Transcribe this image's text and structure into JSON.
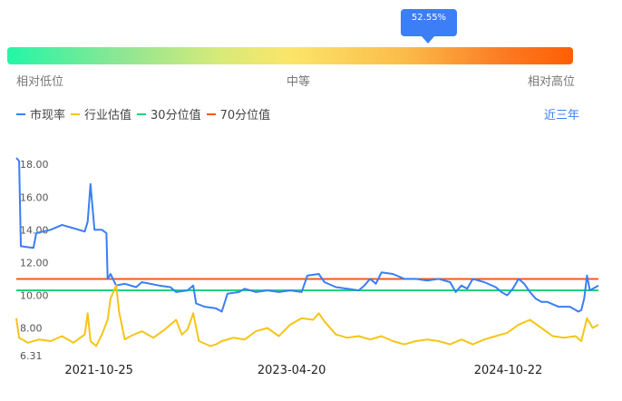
{
  "gauge": {
    "percentile": 0.5255,
    "percentile_label": "52.55%",
    "low_label": "相对低位",
    "mid_label": "中等",
    "high_label": "相对高位"
  },
  "legend": {
    "items": [
      {
        "label": "市现率",
        "color": "#3b7ef5"
      },
      {
        "label": "行业估值",
        "color": "#f5c518"
      },
      {
        "label": "30分位值",
        "color": "#1fd47a"
      },
      {
        "label": "70分位值",
        "color": "#f5581a"
      }
    ],
    "range_label": "近三年"
  },
  "chart_data": {
    "type": "line",
    "ylim": [
      6.31,
      18.9
    ],
    "yticks": [
      "6.31",
      "8.00",
      "10.00",
      "12.00",
      "14.00",
      "16.00",
      "18.00"
    ],
    "ytick_values": [
      6.31,
      8,
      10,
      12,
      14,
      16,
      18
    ],
    "xticks": [
      "2021-10-25",
      "2023-04-20",
      "2024-10-22"
    ],
    "xtick_positions": [
      0.142,
      0.473,
      0.845
    ],
    "series": [
      {
        "name": "市现率",
        "color": "#3b7ef5",
        "points": [
          [
            0,
            18.4
          ],
          [
            0.005,
            18.2
          ],
          [
            0.008,
            13.0
          ],
          [
            0.03,
            12.9
          ],
          [
            0.035,
            13.8
          ],
          [
            0.06,
            14.0
          ],
          [
            0.08,
            14.3
          ],
          [
            0.1,
            14.1
          ],
          [
            0.12,
            13.9
          ],
          [
            0.125,
            14.5
          ],
          [
            0.13,
            16.8
          ],
          [
            0.137,
            14.0
          ],
          [
            0.15,
            14.0
          ],
          [
            0.158,
            13.8
          ],
          [
            0.16,
            11.0
          ],
          [
            0.165,
            11.3
          ],
          [
            0.175,
            10.6
          ],
          [
            0.19,
            10.7
          ],
          [
            0.21,
            10.5
          ],
          [
            0.22,
            10.8
          ],
          [
            0.25,
            10.6
          ],
          [
            0.27,
            10.5
          ],
          [
            0.28,
            10.2
          ],
          [
            0.3,
            10.3
          ],
          [
            0.31,
            10.6
          ],
          [
            0.315,
            9.5
          ],
          [
            0.33,
            9.3
          ],
          [
            0.35,
            9.2
          ],
          [
            0.36,
            9.0
          ],
          [
            0.37,
            10.1
          ],
          [
            0.39,
            10.2
          ],
          [
            0.4,
            10.4
          ],
          [
            0.42,
            10.2
          ],
          [
            0.44,
            10.3
          ],
          [
            0.46,
            10.2
          ],
          [
            0.48,
            10.3
          ],
          [
            0.5,
            10.2
          ],
          [
            0.51,
            11.2
          ],
          [
            0.53,
            11.3
          ],
          [
            0.54,
            10.8
          ],
          [
            0.56,
            10.5
          ],
          [
            0.58,
            10.4
          ],
          [
            0.6,
            10.3
          ],
          [
            0.61,
            10.6
          ],
          [
            0.62,
            11.0
          ],
          [
            0.63,
            10.7
          ],
          [
            0.64,
            11.4
          ],
          [
            0.66,
            11.3
          ],
          [
            0.68,
            11.0
          ],
          [
            0.7,
            11.0
          ],
          [
            0.72,
            10.9
          ],
          [
            0.74,
            11.0
          ],
          [
            0.76,
            10.8
          ],
          [
            0.77,
            10.2
          ],
          [
            0.78,
            10.6
          ],
          [
            0.79,
            10.4
          ],
          [
            0.8,
            11.0
          ],
          [
            0.82,
            10.8
          ],
          [
            0.84,
            10.5
          ],
          [
            0.85,
            10.2
          ],
          [
            0.86,
            10.0
          ],
          [
            0.87,
            10.4
          ],
          [
            0.88,
            11.0
          ],
          [
            0.89,
            10.7
          ],
          [
            0.9,
            10.2
          ],
          [
            0.91,
            9.8
          ],
          [
            0.92,
            9.6
          ],
          [
            0.93,
            9.6
          ],
          [
            0.95,
            9.3
          ],
          [
            0.97,
            9.3
          ],
          [
            0.985,
            9.0
          ],
          [
            0.99,
            9.1
          ],
          [
            0.995,
            9.8
          ],
          [
            1.0,
            11.2
          ],
          [
            1.005,
            10.3
          ],
          [
            1.02,
            10.6
          ]
        ]
      },
      {
        "name": "行业估值",
        "color": "#f5c518",
        "points": [
          [
            0,
            8.6
          ],
          [
            0.005,
            7.4
          ],
          [
            0.02,
            7.1
          ],
          [
            0.04,
            7.3
          ],
          [
            0.06,
            7.2
          ],
          [
            0.08,
            7.5
          ],
          [
            0.1,
            7.1
          ],
          [
            0.12,
            7.6
          ],
          [
            0.125,
            8.9
          ],
          [
            0.13,
            7.2
          ],
          [
            0.14,
            6.9
          ],
          [
            0.15,
            7.6
          ],
          [
            0.16,
            8.5
          ],
          [
            0.165,
            9.8
          ],
          [
            0.175,
            10.6
          ],
          [
            0.18,
            9.0
          ],
          [
            0.19,
            7.3
          ],
          [
            0.2,
            7.5
          ],
          [
            0.22,
            7.8
          ],
          [
            0.24,
            7.4
          ],
          [
            0.26,
            7.9
          ],
          [
            0.28,
            8.5
          ],
          [
            0.29,
            7.6
          ],
          [
            0.3,
            7.9
          ],
          [
            0.31,
            8.9
          ],
          [
            0.32,
            7.2
          ],
          [
            0.34,
            6.9
          ],
          [
            0.35,
            7.0
          ],
          [
            0.36,
            7.2
          ],
          [
            0.38,
            7.4
          ],
          [
            0.4,
            7.3
          ],
          [
            0.42,
            7.8
          ],
          [
            0.44,
            8.0
          ],
          [
            0.46,
            7.5
          ],
          [
            0.48,
            8.2
          ],
          [
            0.5,
            8.6
          ],
          [
            0.52,
            8.5
          ],
          [
            0.53,
            8.9
          ],
          [
            0.54,
            8.4
          ],
          [
            0.56,
            7.6
          ],
          [
            0.58,
            7.4
          ],
          [
            0.6,
            7.5
          ],
          [
            0.62,
            7.3
          ],
          [
            0.64,
            7.5
          ],
          [
            0.66,
            7.2
          ],
          [
            0.68,
            7.0
          ],
          [
            0.7,
            7.2
          ],
          [
            0.72,
            7.3
          ],
          [
            0.74,
            7.2
          ],
          [
            0.76,
            7.0
          ],
          [
            0.78,
            7.3
          ],
          [
            0.8,
            7.0
          ],
          [
            0.82,
            7.3
          ],
          [
            0.84,
            7.5
          ],
          [
            0.86,
            7.7
          ],
          [
            0.88,
            8.2
          ],
          [
            0.9,
            8.5
          ],
          [
            0.92,
            8.0
          ],
          [
            0.94,
            7.5
          ],
          [
            0.96,
            7.4
          ],
          [
            0.98,
            7.5
          ],
          [
            0.99,
            7.2
          ],
          [
            1.0,
            8.6
          ],
          [
            1.01,
            8.0
          ],
          [
            1.02,
            8.2
          ]
        ]
      }
    ],
    "reference_lines": [
      {
        "name": "30分位值",
        "value": 10.3,
        "color": "#1fd47a"
      },
      {
        "name": "70分位值",
        "value": 11.0,
        "color": "#f5581a"
      }
    ]
  }
}
